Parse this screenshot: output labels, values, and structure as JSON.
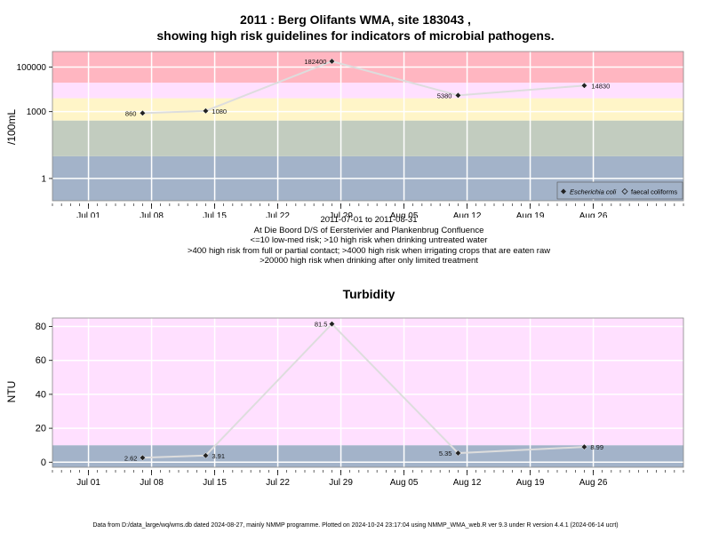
{
  "header": {
    "title_line1": "2011 : Berg Olifants WMA, site 183043 ,",
    "title_line2": "showing high risk guidelines for indicators of microbial pathogens."
  },
  "microbial": {
    "ylabel": "/100mL",
    "caption_lines": [
      "2011-07-01 to 2011-08-31",
      "At Die Boord D/S of Eersterivier and Plankenbrug Confluence",
      "<=10 low-med risk; >10 high risk when drinking untreated water",
      ">400 high risk from full or partial contact; >4000 high risk when irrigating crops that are eaten raw",
      ">20000 high risk when drinking after only limited treatment"
    ],
    "legend": [
      "Escherichia coli",
      "faecal coliforms"
    ]
  },
  "turbidity": {
    "title": "Turbidity",
    "ylabel": "NTU"
  },
  "footer": "Data from D:/data_large/wq/wms.db dated 2024-08-27, mainly NMMP programme. Plotted on 2024-10-24 23:17:04 using NMMP_WMA_web.R ver 9.3 under R version 4.4.1 (2024-06-14 ucrt)",
  "colors": {
    "band_red": "#ffb6c1",
    "band_pink": "#ffe0ff",
    "band_yellow": "#fff5c8",
    "band_green": "#c2ccbf",
    "band_blue": "#a3b3c9",
    "line": "#dddddd",
    "grid": "#ffffff"
  },
  "chart_data": [
    {
      "type": "line",
      "title": "2011 : Berg Olifants WMA, site 183043 , showing high risk guidelines for indicators of microbial pathogens.",
      "ylabel": "/100mL",
      "yscale": "log",
      "ylim": [
        0.1,
        500000
      ],
      "xlim": [
        "2011-06-27",
        "2011-09-05"
      ],
      "x_ticks": [
        "Jul 01",
        "Jul 08",
        "Jul 15",
        "Jul 22",
        "Jul 29",
        "Aug 05",
        "Aug 12",
        "Aug 19",
        "Aug 26"
      ],
      "x_tick_dates": [
        "2011-07-01",
        "2011-07-08",
        "2011-07-15",
        "2011-07-22",
        "2011-07-29",
        "2011-08-05",
        "2011-08-12",
        "2011-08-19",
        "2011-08-26"
      ],
      "y_ticks": [
        1,
        1000,
        100000
      ],
      "y_tick_labels": [
        "1",
        "1000",
        "100000"
      ],
      "bands": [
        {
          "from": 0.1,
          "to": 10,
          "color": "#a3b3c9"
        },
        {
          "from": 10,
          "to": 400,
          "color": "#c2ccbf"
        },
        {
          "from": 400,
          "to": 4000,
          "color": "#fff5c8"
        },
        {
          "from": 4000,
          "to": 20000,
          "color": "#ffe0ff"
        },
        {
          "from": 20000,
          "to": 500000,
          "color": "#ffb6c1"
        }
      ],
      "series": [
        {
          "name": "Escherichia coli",
          "x": [
            "2011-07-07",
            "2011-07-14",
            "2011-07-28",
            "2011-08-11",
            "2011-08-25"
          ],
          "values": [
            860,
            1080,
            182400,
            5380,
            14830
          ],
          "labels": [
            "860",
            "1080",
            "182400",
            "5380",
            "14830"
          ]
        }
      ],
      "legend_position": "bottom-right"
    },
    {
      "type": "line",
      "title": "Turbidity",
      "ylabel": "NTU",
      "ylim": [
        -3,
        85
      ],
      "xlim": [
        "2011-06-27",
        "2011-09-05"
      ],
      "x_ticks": [
        "Jul 01",
        "Jul 08",
        "Jul 15",
        "Jul 22",
        "Jul 29",
        "Aug 05",
        "Aug 12",
        "Aug 19",
        "Aug 26"
      ],
      "x_tick_dates": [
        "2011-07-01",
        "2011-07-08",
        "2011-07-15",
        "2011-07-22",
        "2011-07-29",
        "2011-08-05",
        "2011-08-12",
        "2011-08-19",
        "2011-08-26"
      ],
      "y_ticks": [
        0,
        20,
        40,
        60,
        80
      ],
      "y_tick_labels": [
        "0",
        "20",
        "40",
        "60",
        "80"
      ],
      "bands": [
        {
          "from": -3,
          "to": 10,
          "color": "#a3b3c9"
        },
        {
          "from": 10,
          "to": 85,
          "color": "#ffe0ff"
        }
      ],
      "series": [
        {
          "x": [
            "2011-07-07",
            "2011-07-14",
            "2011-07-28",
            "2011-08-11",
            "2011-08-25"
          ],
          "values": [
            2.62,
            3.91,
            81.5,
            5.35,
            8.99
          ],
          "labels": [
            "2.62",
            "3.91",
            "81.5",
            "5.35",
            "8.99"
          ]
        }
      ]
    }
  ]
}
